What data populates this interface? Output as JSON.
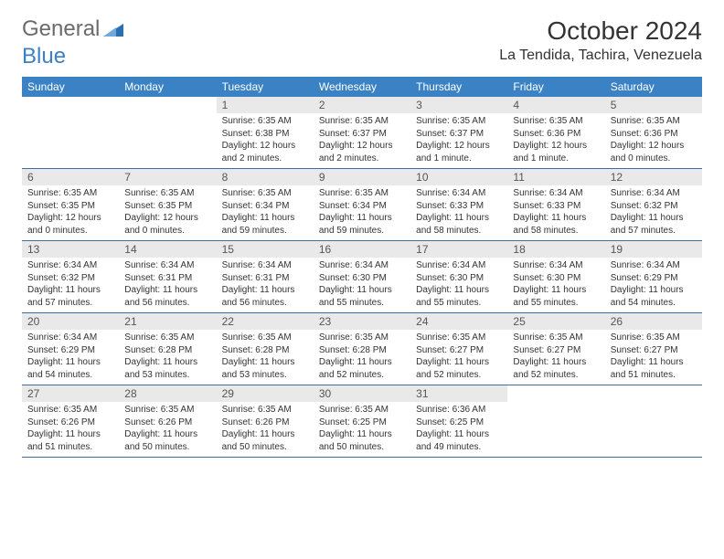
{
  "logo": {
    "text1": "General",
    "text2": "Blue"
  },
  "title": "October 2024",
  "location": "La Tendida, Tachira, Venezuela",
  "colors": {
    "header_bg": "#3b82c4",
    "header_text": "#ffffff",
    "daynum_bg": "#e9e9e9",
    "week_border": "#3b6fa0",
    "logo_gray": "#6b6b6b",
    "logo_blue": "#3b7fc4"
  },
  "columns": [
    "Sunday",
    "Monday",
    "Tuesday",
    "Wednesday",
    "Thursday",
    "Friday",
    "Saturday"
  ],
  "weeks": [
    [
      {
        "n": "",
        "sr": "",
        "ss": "",
        "dl": ""
      },
      {
        "n": "",
        "sr": "",
        "ss": "",
        "dl": ""
      },
      {
        "n": "1",
        "sr": "Sunrise: 6:35 AM",
        "ss": "Sunset: 6:38 PM",
        "dl": "Daylight: 12 hours and 2 minutes."
      },
      {
        "n": "2",
        "sr": "Sunrise: 6:35 AM",
        "ss": "Sunset: 6:37 PM",
        "dl": "Daylight: 12 hours and 2 minutes."
      },
      {
        "n": "3",
        "sr": "Sunrise: 6:35 AM",
        "ss": "Sunset: 6:37 PM",
        "dl": "Daylight: 12 hours and 1 minute."
      },
      {
        "n": "4",
        "sr": "Sunrise: 6:35 AM",
        "ss": "Sunset: 6:36 PM",
        "dl": "Daylight: 12 hours and 1 minute."
      },
      {
        "n": "5",
        "sr": "Sunrise: 6:35 AM",
        "ss": "Sunset: 6:36 PM",
        "dl": "Daylight: 12 hours and 0 minutes."
      }
    ],
    [
      {
        "n": "6",
        "sr": "Sunrise: 6:35 AM",
        "ss": "Sunset: 6:35 PM",
        "dl": "Daylight: 12 hours and 0 minutes."
      },
      {
        "n": "7",
        "sr": "Sunrise: 6:35 AM",
        "ss": "Sunset: 6:35 PM",
        "dl": "Daylight: 12 hours and 0 minutes."
      },
      {
        "n": "8",
        "sr": "Sunrise: 6:35 AM",
        "ss": "Sunset: 6:34 PM",
        "dl": "Daylight: 11 hours and 59 minutes."
      },
      {
        "n": "9",
        "sr": "Sunrise: 6:35 AM",
        "ss": "Sunset: 6:34 PM",
        "dl": "Daylight: 11 hours and 59 minutes."
      },
      {
        "n": "10",
        "sr": "Sunrise: 6:34 AM",
        "ss": "Sunset: 6:33 PM",
        "dl": "Daylight: 11 hours and 58 minutes."
      },
      {
        "n": "11",
        "sr": "Sunrise: 6:34 AM",
        "ss": "Sunset: 6:33 PM",
        "dl": "Daylight: 11 hours and 58 minutes."
      },
      {
        "n": "12",
        "sr": "Sunrise: 6:34 AM",
        "ss": "Sunset: 6:32 PM",
        "dl": "Daylight: 11 hours and 57 minutes."
      }
    ],
    [
      {
        "n": "13",
        "sr": "Sunrise: 6:34 AM",
        "ss": "Sunset: 6:32 PM",
        "dl": "Daylight: 11 hours and 57 minutes."
      },
      {
        "n": "14",
        "sr": "Sunrise: 6:34 AM",
        "ss": "Sunset: 6:31 PM",
        "dl": "Daylight: 11 hours and 56 minutes."
      },
      {
        "n": "15",
        "sr": "Sunrise: 6:34 AM",
        "ss": "Sunset: 6:31 PM",
        "dl": "Daylight: 11 hours and 56 minutes."
      },
      {
        "n": "16",
        "sr": "Sunrise: 6:34 AM",
        "ss": "Sunset: 6:30 PM",
        "dl": "Daylight: 11 hours and 55 minutes."
      },
      {
        "n": "17",
        "sr": "Sunrise: 6:34 AM",
        "ss": "Sunset: 6:30 PM",
        "dl": "Daylight: 11 hours and 55 minutes."
      },
      {
        "n": "18",
        "sr": "Sunrise: 6:34 AM",
        "ss": "Sunset: 6:30 PM",
        "dl": "Daylight: 11 hours and 55 minutes."
      },
      {
        "n": "19",
        "sr": "Sunrise: 6:34 AM",
        "ss": "Sunset: 6:29 PM",
        "dl": "Daylight: 11 hours and 54 minutes."
      }
    ],
    [
      {
        "n": "20",
        "sr": "Sunrise: 6:34 AM",
        "ss": "Sunset: 6:29 PM",
        "dl": "Daylight: 11 hours and 54 minutes."
      },
      {
        "n": "21",
        "sr": "Sunrise: 6:35 AM",
        "ss": "Sunset: 6:28 PM",
        "dl": "Daylight: 11 hours and 53 minutes."
      },
      {
        "n": "22",
        "sr": "Sunrise: 6:35 AM",
        "ss": "Sunset: 6:28 PM",
        "dl": "Daylight: 11 hours and 53 minutes."
      },
      {
        "n": "23",
        "sr": "Sunrise: 6:35 AM",
        "ss": "Sunset: 6:28 PM",
        "dl": "Daylight: 11 hours and 52 minutes."
      },
      {
        "n": "24",
        "sr": "Sunrise: 6:35 AM",
        "ss": "Sunset: 6:27 PM",
        "dl": "Daylight: 11 hours and 52 minutes."
      },
      {
        "n": "25",
        "sr": "Sunrise: 6:35 AM",
        "ss": "Sunset: 6:27 PM",
        "dl": "Daylight: 11 hours and 52 minutes."
      },
      {
        "n": "26",
        "sr": "Sunrise: 6:35 AM",
        "ss": "Sunset: 6:27 PM",
        "dl": "Daylight: 11 hours and 51 minutes."
      }
    ],
    [
      {
        "n": "27",
        "sr": "Sunrise: 6:35 AM",
        "ss": "Sunset: 6:26 PM",
        "dl": "Daylight: 11 hours and 51 minutes."
      },
      {
        "n": "28",
        "sr": "Sunrise: 6:35 AM",
        "ss": "Sunset: 6:26 PM",
        "dl": "Daylight: 11 hours and 50 minutes."
      },
      {
        "n": "29",
        "sr": "Sunrise: 6:35 AM",
        "ss": "Sunset: 6:26 PM",
        "dl": "Daylight: 11 hours and 50 minutes."
      },
      {
        "n": "30",
        "sr": "Sunrise: 6:35 AM",
        "ss": "Sunset: 6:25 PM",
        "dl": "Daylight: 11 hours and 50 minutes."
      },
      {
        "n": "31",
        "sr": "Sunrise: 6:36 AM",
        "ss": "Sunset: 6:25 PM",
        "dl": "Daylight: 11 hours and 49 minutes."
      },
      {
        "n": "",
        "sr": "",
        "ss": "",
        "dl": ""
      },
      {
        "n": "",
        "sr": "",
        "ss": "",
        "dl": ""
      }
    ]
  ]
}
